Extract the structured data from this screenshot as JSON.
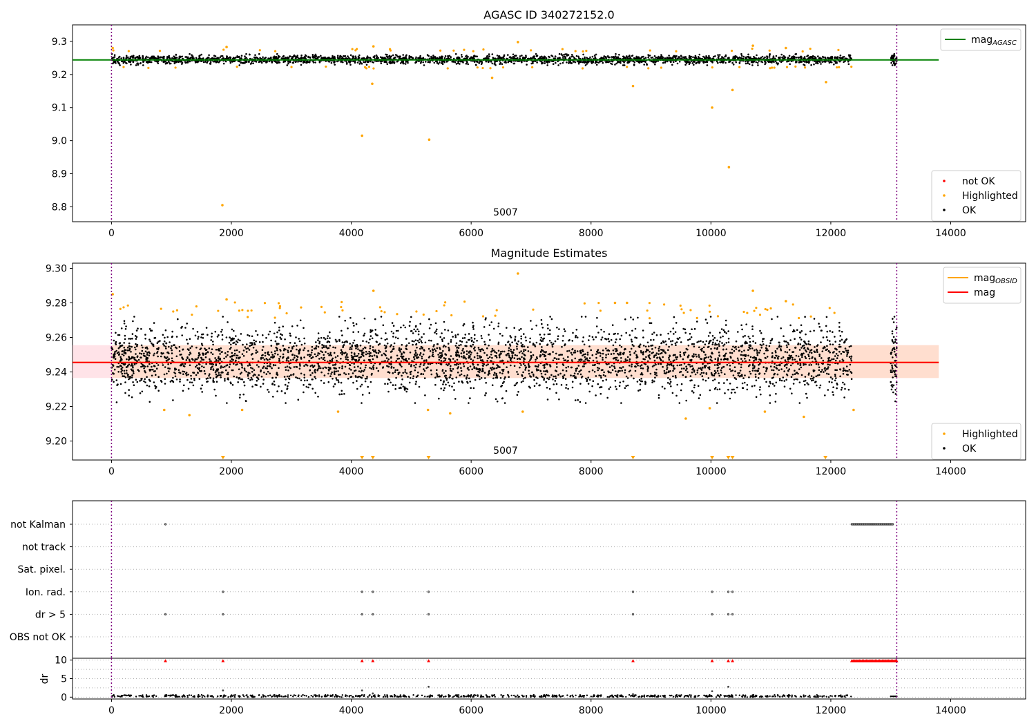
{
  "colors": {
    "ok": "#000000",
    "highlighted": "#ffa500",
    "not_ok": "#ff0000",
    "mag_agasc_line": "#008000",
    "mag_line": "#ff0000",
    "mag_obsid_line": "#ffa500",
    "mag_band": "#ffc0cb",
    "obs_band": "#ffdab9",
    "obs_boundary": "#800080",
    "flag_marker_fill": "#888888",
    "dr_flag_marker": "#ff0000"
  },
  "chart_data": [
    {
      "id": "agasc",
      "type": "scatter",
      "title": "AGASC ID 340272152.0",
      "xlabel": "",
      "ylabel": "",
      "xlim": [
        -650,
        15250
      ],
      "ylim": [
        8.755,
        9.35
      ],
      "x_ticks": [
        0,
        2000,
        4000,
        6000,
        8000,
        10000,
        12000,
        14000
      ],
      "y_ticks": [
        8.8,
        8.9,
        9.0,
        9.1,
        9.2,
        9.3
      ],
      "y_tick_labels": [
        "8.8",
        "8.9",
        "9.0",
        "9.1",
        "9.2",
        "9.3"
      ],
      "observation_boundaries": [
        0,
        13100
      ],
      "observation_label": {
        "text": "5007",
        "x": 6550
      },
      "series": [
        {
          "name": "not OK",
          "kind": "points",
          "values": []
        },
        {
          "name": "Highlighted",
          "kind": "points",
          "values": [
            [
              1850,
              8.805
            ],
            [
              4180,
              9.015
            ],
            [
              5300,
              9.003
            ],
            [
              10020,
              9.1
            ],
            [
              10300,
              8.92
            ],
            [
              10360,
              9.153
            ],
            [
              4350,
              9.172
            ],
            [
              6350,
              9.19
            ],
            [
              8700,
              9.165
            ],
            [
              11920,
              9.177
            ],
            [
              6780,
              9.298
            ],
            [
              20,
              9.28
            ],
            [
              1920,
              9.283
            ],
            [
              4370,
              9.285
            ],
            [
              10700,
              9.287
            ],
            [
              11250,
              9.28
            ]
          ]
        },
        {
          "name": "OK",
          "kind": "band",
          "x_range": [
            0,
            12350
          ],
          "y_range": [
            9.228,
            9.262
          ],
          "extra_x_range": [
            13000,
            13100
          ]
        },
        {
          "name": "mag_{AGASC}",
          "kind": "hline",
          "y": 9.244,
          "x_range": [
            -650,
            13800
          ]
        }
      ],
      "legends": [
        {
          "position": "upper-right",
          "entries": [
            {
              "label": "mag",
              "sub": "AGASC",
              "kind": "line",
              "series": "mag_agasc_line"
            }
          ]
        },
        {
          "position": "lower-right",
          "entries": [
            {
              "label": "not OK",
              "kind": "dot",
              "series": "not_ok"
            },
            {
              "label": "Highlighted",
              "kind": "dot",
              "series": "highlighted"
            },
            {
              "label": "OK",
              "kind": "dot",
              "series": "ok"
            }
          ]
        }
      ]
    },
    {
      "id": "estimates",
      "type": "scatter",
      "title": "Magnitude Estimates",
      "xlabel": "",
      "ylabel": "",
      "xlim": [
        -650,
        15250
      ],
      "ylim": [
        9.189,
        9.303
      ],
      "x_ticks": [
        0,
        2000,
        4000,
        6000,
        8000,
        10000,
        12000,
        14000
      ],
      "y_ticks": [
        9.2,
        9.22,
        9.24,
        9.26,
        9.28,
        9.3
      ],
      "y_tick_labels": [
        "9.20",
        "9.22",
        "9.24",
        "9.26",
        "9.28",
        "9.30"
      ],
      "observation_boundaries": [
        0,
        13100
      ],
      "observation_label": {
        "text": "5007",
        "x": 6550
      },
      "mag": 9.2455,
      "mag_band": [
        9.2365,
        9.2555
      ],
      "mag_obsid": 9.2455,
      "series": [
        {
          "name": "Highlighted",
          "kind": "points",
          "values": [
            [
              20,
              9.285
            ],
            [
              1920,
              9.282
            ],
            [
              4370,
              9.287
            ],
            [
              6780,
              9.297
            ],
            [
              10700,
              9.287
            ],
            [
              11250,
              9.281
            ],
            [
              880,
              9.218
            ],
            [
              1300,
              9.215
            ],
            [
              2180,
              9.218
            ],
            [
              3780,
              9.217
            ],
            [
              5280,
              9.218
            ],
            [
              5650,
              9.216
            ],
            [
              6860,
              9.217
            ],
            [
              9580,
              9.213
            ],
            [
              9980,
              9.219
            ],
            [
              10900,
              9.217
            ],
            [
              11550,
              9.214
            ],
            [
              12380,
              9.218
            ],
            [
              8400,
              9.28
            ],
            [
              8600,
              9.28
            ]
          ]
        },
        {
          "name": "Highlighted (off scale)",
          "kind": "lower_markers",
          "x": [
            1860,
            4180,
            4360,
            5290,
            8700,
            10020,
            10290,
            10360,
            11910
          ]
        },
        {
          "name": "OK",
          "kind": "band",
          "x_range": [
            0,
            12350
          ],
          "y_range": [
            9.222,
            9.272
          ],
          "extra_x_range": [
            13000,
            13100
          ]
        }
      ],
      "legends": [
        {
          "position": "upper-right",
          "entries": [
            {
              "label": "mag",
              "sub": "OBSID",
              "kind": "line",
              "series": "mag_obsid_line"
            },
            {
              "label": "mag",
              "sub": "",
              "kind": "line",
              "series": "mag_line"
            }
          ]
        },
        {
          "position": "lower-right",
          "entries": [
            {
              "label": "Highlighted",
              "kind": "dot",
              "series": "highlighted"
            },
            {
              "label": "OK",
              "kind": "dot",
              "series": "ok"
            }
          ]
        }
      ]
    },
    {
      "id": "flags",
      "type": "scatter",
      "title": "",
      "xlabel": "",
      "ylabel": "",
      "xlim": [
        -650,
        15250
      ],
      "categories": [
        "not Kalman",
        "not track",
        "Sat. pixel.",
        "Ion. rad.",
        "dr > 5",
        "OBS not OK"
      ],
      "observation_boundaries": [
        0,
        13100
      ],
      "flag_points": {
        "not Kalman": {
          "x": [
            900
          ],
          "dense_range": [
            12350,
            13050
          ]
        },
        "not track": {
          "x": []
        },
        "Sat. pixel.": {
          "x": []
        },
        "Ion. rad.": {
          "x": [
            1860,
            4180,
            4360,
            5290,
            8700,
            10020,
            10290,
            10360
          ]
        },
        "dr > 5": {
          "x": [
            900,
            1860,
            4180,
            4360,
            5290,
            8700,
            10020,
            10290,
            10360
          ]
        },
        "OBS not OK": {
          "x": []
        }
      }
    },
    {
      "id": "dr",
      "type": "scatter",
      "title": "",
      "xlabel": "",
      "ylabel": "dr",
      "xlim": [
        -650,
        15250
      ],
      "ylim": [
        -0.5,
        10.5
      ],
      "y_ticks": [
        0,
        5,
        10
      ],
      "y_tick_labels": [
        "0",
        "5",
        "10"
      ],
      "x_ticks": [
        0,
        2000,
        4000,
        6000,
        8000,
        10000,
        12000,
        14000
      ],
      "observation_boundaries": [
        0,
        13100
      ],
      "series": [
        {
          "name": "dr",
          "kind": "band",
          "x_range": [
            0,
            12350
          ],
          "y_range": [
            0,
            0.6
          ],
          "extra_x_range": [
            13000,
            13100
          ]
        },
        {
          "name": "dr outliers",
          "kind": "points",
          "values": [
            [
              1860,
              1.8
            ],
            [
              4180,
              1.8
            ],
            [
              4360,
              1.0
            ],
            [
              5290,
              2.8
            ],
            [
              8700,
              0.8
            ],
            [
              10020,
              1.6
            ],
            [
              10290,
              2.8
            ]
          ]
        },
        {
          "name": "dr > 5 (clipped)",
          "kind": "upper_markers",
          "x": [
            900,
            1860,
            4180,
            4360,
            5290,
            8700,
            10020,
            10290,
            10360
          ],
          "dense_range": [
            12350,
            13100
          ]
        }
      ]
    }
  ]
}
